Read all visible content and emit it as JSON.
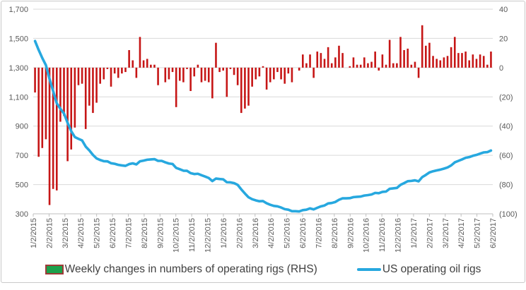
{
  "legend": {
    "bar_series_label": "Weekly changes in numbers of operating rigs (RHS)",
    "line_series_label": "US operating oil rigs"
  },
  "colors": {
    "bar": "#c61616",
    "line": "#27a8df",
    "legend_bar_fill": "#1ca14c",
    "legend_bar_border": "#9e3b38",
    "gridline": "#d9d9d9",
    "axis_line": "#bfbfbf",
    "axis_text": "#595959",
    "legend_text": "#404040",
    "frame_border": "#c9c9c9"
  },
  "chart_data": {
    "type": "bar",
    "subtype": "combo-bar-line-dual-axis",
    "title": "",
    "xlabel": "",
    "ylabel": "",
    "grid": true,
    "legend_position": "bottom",
    "x_tick_labels": [
      "1/2/2015",
      "2/2/2015",
      "3/2/2015",
      "4/2/2015",
      "5/2/2015",
      "6/2/2015",
      "7/2/2015",
      "8/2/2015",
      "9/2/2015",
      "10/2/2015",
      "11/2/2015",
      "12/2/2015",
      "1/2/2016",
      "2/2/2016",
      "3/2/2016",
      "4/2/2016",
      "5/2/2016",
      "6/2/2016",
      "7/2/2016",
      "8/2/2016",
      "9/2/2016",
      "10/2/2016",
      "11/2/2016",
      "12/2/2016",
      "1/2/2017",
      "2/2/2017",
      "3/2/2017",
      "4/2/2017",
      "5/2/2017",
      "6/2/2017"
    ],
    "left_axis": {
      "tick_labels": [
        "1,700",
        "1,500",
        "1,300",
        "1,100",
        "900",
        "700",
        "500",
        "300"
      ],
      "tick_values": [
        1700,
        1500,
        1300,
        1100,
        900,
        700,
        500,
        300
      ],
      "range": [
        300,
        1700
      ]
    },
    "right_axis": {
      "tick_labels": [
        "40",
        "20",
        "0",
        "(20)",
        "(40)",
        "(60)",
        "(80)",
        "(100)"
      ],
      "tick_values": [
        40,
        20,
        0,
        -20,
        -40,
        -60,
        -80,
        -100
      ],
      "range": [
        -100,
        40
      ]
    },
    "series": [
      {
        "name": "Weekly changes in numbers of operating rigs (RHS)",
        "type": "bar",
        "axis": "right",
        "values": [
          -17,
          -61,
          -55,
          -49,
          -94,
          -83,
          -84,
          -37,
          -33,
          -64,
          -56,
          -41,
          -12,
          -11,
          -42,
          -26,
          -31,
          -24,
          -11,
          -8,
          -1,
          -13,
          -4,
          -7,
          -4,
          -3,
          12,
          5,
          -7,
          21,
          5,
          6,
          2,
          2,
          -12,
          0,
          -10,
          -8,
          -3,
          -27,
          -9,
          -10,
          -1,
          -16,
          -6,
          2,
          -10,
          -9,
          -10,
          -21,
          17,
          -3,
          -2,
          -20,
          -1,
          -5,
          -12,
          -31,
          -28,
          -26,
          -13,
          -8,
          -6,
          1,
          -15,
          -10,
          -8,
          -3,
          -8,
          -11,
          -4,
          -10,
          0,
          -2,
          9,
          3,
          9,
          -7,
          11,
          10,
          6,
          14,
          3,
          7,
          15,
          10,
          0,
          1,
          7,
          2,
          2,
          7,
          3,
          4,
          11,
          -2,
          9,
          2,
          19,
          3,
          3,
          21,
          12,
          13,
          2,
          4,
          -7,
          29,
          15,
          17,
          8,
          6,
          5,
          7,
          8,
          14,
          21,
          10,
          10,
          11,
          5,
          9,
          6,
          9,
          8,
          2,
          11
        ]
      },
      {
        "name": "US operating oil rigs",
        "type": "line",
        "axis": "left",
        "values": [
          1482,
          1421,
          1366,
          1317,
          1223,
          1140,
          1056,
          1019,
          986,
          922,
          866,
          825,
          813,
          802,
          760,
          734,
          703,
          679,
          668,
          660,
          659,
          646,
          642,
          635,
          631,
          628,
          640,
          645,
          638,
          659,
          664,
          670,
          672,
          674,
          662,
          662,
          652,
          644,
          641,
          614,
          605,
          595,
          594,
          578,
          572,
          574,
          564,
          555,
          545,
          524,
          541,
          538,
          536,
          516,
          515,
          510,
          498,
          467,
          439,
          413,
          400,
          392,
          386,
          387,
          372,
          362,
          354,
          351,
          343,
          332,
          328,
          318,
          318,
          316,
          325,
          328,
          337,
          330,
          341,
          351,
          357,
          371,
          374,
          381,
          396,
          406,
          406,
          407,
          414,
          416,
          418,
          425,
          428,
          432,
          443,
          441,
          450,
          452,
          471,
          474,
          477,
          498,
          510,
          523,
          525,
          529,
          522,
          551,
          566,
          583,
          591,
          597,
          602,
          609,
          617,
          631,
          652,
          662,
          672,
          683,
          688,
          697,
          703,
          712,
          720,
          722,
          733
        ]
      }
    ]
  }
}
